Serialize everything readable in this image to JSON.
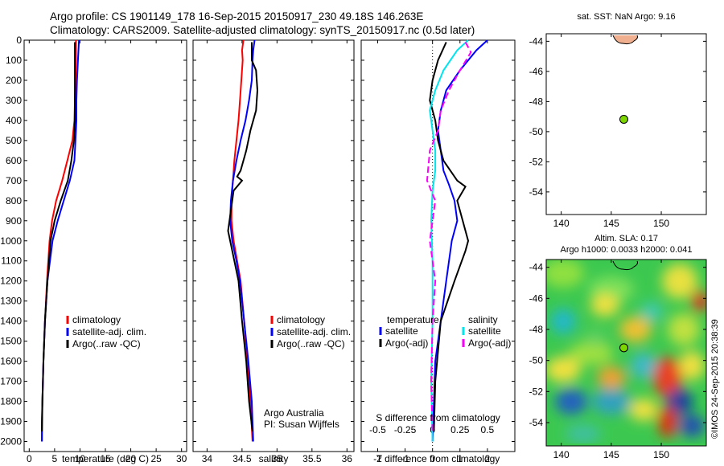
{
  "header": {
    "line1": "Argo profile: CS 1901149_178 16-Sep-2015 20150917_230 49.18S 146.263E",
    "line2": "Climatology: CARS2009. Satellite-adjusted climatology: synTS_20150917.nc (0.5d later)"
  },
  "colors": {
    "climatology": "#ff0000",
    "satellite": "#0000ff",
    "argo": "#000000",
    "sat_salt": "#00e5ee",
    "argo_salt": "#ff00ff",
    "float_marker": "#7cd400"
  },
  "chart_data": [
    {
      "id": "temperature",
      "type": "line",
      "xlabel": "temperature (deg C)",
      "ylabel": "",
      "xlim": [
        -1,
        31
      ],
      "ylim": [
        2050,
        0
      ],
      "xticks": [
        0,
        5,
        10,
        15,
        20,
        25,
        30
      ],
      "yticks": [
        0,
        100,
        200,
        300,
        400,
        500,
        600,
        700,
        800,
        900,
        1000,
        1100,
        1200,
        1300,
        1400,
        1500,
        1600,
        1700,
        1800,
        1900,
        2000
      ],
      "legend": [
        "climatology",
        "satellite-adj. clim.",
        "Argo(..raw -QC)"
      ],
      "series": [
        {
          "name": "climatology",
          "color": "#ff0000",
          "x": [
            9.2,
            9.2,
            9.1,
            9.0,
            8.9,
            8.5,
            7.5,
            6.5,
            5.3,
            4.5,
            4.0,
            3.5,
            3.1,
            2.8,
            2.6,
            2.55,
            2.5
          ],
          "y": [
            0,
            100,
            200,
            300,
            400,
            500,
            600,
            700,
            800,
            900,
            1000,
            1200,
            1400,
            1600,
            1800,
            1900,
            2000
          ]
        },
        {
          "name": "satellite-adj. clim.",
          "color": "#0000ff",
          "x": [
            9.8,
            9.6,
            9.4,
            9.3,
            9.3,
            9.1,
            8.9,
            8.0,
            6.8,
            5.6,
            4.6,
            3.6,
            3.1,
            2.8,
            2.6,
            2.5,
            2.5
          ],
          "y": [
            0,
            100,
            200,
            300,
            400,
            500,
            600,
            700,
            800,
            900,
            1000,
            1200,
            1400,
            1600,
            1800,
            1900,
            2000
          ]
        },
        {
          "name": "Argo(..raw -QC)",
          "color": "#000000",
          "x": [
            9.0,
            9.0,
            9.0,
            9.0,
            9.0,
            8.8,
            8.3,
            7.6,
            6.2,
            5.0,
            4.2,
            3.6,
            3.1,
            2.8,
            2.6,
            2.5
          ],
          "y": [
            10,
            100,
            200,
            300,
            400,
            500,
            600,
            700,
            800,
            900,
            1000,
            1200,
            1400,
            1600,
            1800,
            1950
          ]
        }
      ]
    },
    {
      "id": "salinity",
      "type": "line",
      "xlabel": "salinity",
      "ylabel": "",
      "xlim": [
        33.8,
        36.1
      ],
      "ylim": [
        2050,
        0
      ],
      "xticks": [
        34,
        34.5,
        35,
        35.5,
        36
      ],
      "legend": [
        "climatology",
        "satellite-adj. clim.",
        "Argo(..raw -QC)"
      ],
      "annotation": [
        "Argo Australia",
        "PI: Susan Wijffels"
      ],
      "series": [
        {
          "name": "climatology",
          "color": "#ff0000",
          "x": [
            34.52,
            34.5,
            34.51,
            34.49,
            34.47,
            34.45,
            34.42,
            34.39,
            34.37,
            34.35,
            34.35,
            34.38,
            34.43,
            34.48,
            34.53,
            34.58,
            34.62,
            34.65
          ],
          "y": [
            0,
            50,
            100,
            200,
            300,
            400,
            500,
            600,
            700,
            800,
            900,
            1000,
            1100,
            1200,
            1400,
            1600,
            1800,
            2000
          ]
        },
        {
          "name": "satellite-adj. clim.",
          "color": "#0000ff",
          "x": [
            34.68,
            34.66,
            34.65,
            34.64,
            34.6,
            34.55,
            34.48,
            34.42,
            34.37,
            34.34,
            34.33,
            34.36,
            34.42,
            34.47,
            34.53,
            34.59,
            34.64,
            34.66
          ],
          "y": [
            0,
            50,
            100,
            200,
            300,
            400,
            500,
            600,
            700,
            800,
            900,
            1000,
            1100,
            1200,
            1400,
            1600,
            1800,
            2000
          ]
        },
        {
          "name": "Argo(..raw -QC)",
          "color": "#000000",
          "x": [
            34.64,
            34.64,
            34.7,
            34.72,
            34.7,
            34.62,
            34.56,
            34.52,
            34.48,
            34.43,
            34.5,
            34.38,
            34.34,
            34.3,
            34.36,
            34.45,
            34.5,
            34.56,
            34.6,
            34.65
          ],
          "y": [
            10,
            100,
            150,
            250,
            350,
            450,
            550,
            600,
            650,
            680,
            700,
            750,
            850,
            950,
            1050,
            1200,
            1400,
            1600,
            1800,
            1950
          ]
        }
      ]
    },
    {
      "id": "difference",
      "type": "line",
      "xlabel": "T difference from climatology",
      "xlabel_top": "S difference from climatology",
      "xlim": [
        -2.6,
        3.0
      ],
      "ylim": [
        2050,
        0
      ],
      "xticks": [
        -2,
        -1,
        0,
        1,
        2
      ],
      "xticks_s_labels": [
        "-0.5",
        "-0.25",
        "0",
        "0.25",
        "0.5"
      ],
      "legend_temperature": {
        "title": "temperature",
        "items": [
          "satellite",
          "Argo(-adj)"
        ]
      },
      "legend_salinity": {
        "title": "salinity",
        "items": [
          "satellite",
          "Argo(-adj)"
        ]
      },
      "series": [
        {
          "name": "temperature satellite",
          "color": "#0000ff",
          "x": [
            2.0,
            1.6,
            1.0,
            0.5,
            0.3,
            0.2,
            0.3,
            0.4,
            0.6,
            0.8,
            0.9,
            0.7,
            0.5,
            0.3,
            0.1,
            0.05,
            0.0
          ],
          "y": [
            0,
            50,
            150,
            250,
            350,
            450,
            550,
            650,
            720,
            800,
            900,
            1000,
            1200,
            1400,
            1600,
            1800,
            2000
          ]
        },
        {
          "name": "temperature Argo(-adj)",
          "color": "#000000",
          "x": [
            0.5,
            0.2,
            0.0,
            -0.1,
            0.1,
            0.2,
            0.4,
            0.9,
            1.2,
            0.9,
            1.1,
            1.3,
            1.2,
            0.8,
            0.3,
            0.1,
            0.05
          ],
          "y": [
            10,
            100,
            200,
            300,
            400,
            500,
            600,
            700,
            730,
            800,
            900,
            1000,
            1050,
            1200,
            1400,
            1700,
            1950
          ]
        },
        {
          "name": "salinity satellite",
          "color": "#00e5ee",
          "x": [
            1.3,
            0.9,
            0.4,
            0.1,
            -0.1,
            0.0,
            0.1,
            0.1,
            0.0,
            -0.05,
            0.0,
            0.0,
            -0.05,
            0.0
          ],
          "y": [
            0,
            50,
            150,
            250,
            350,
            450,
            550,
            650,
            750,
            900,
            1100,
            1400,
            1700,
            2000
          ]
        },
        {
          "name": "salinity Argo(-adj)",
          "color": "#ff00ff",
          "x": [
            1.2,
            1.4,
            1.0,
            0.6,
            0.3,
            0.2,
            -0.1,
            -0.2,
            0.1,
            0.0,
            -0.1,
            0.1,
            0.0,
            -0.05,
            0.0
          ],
          "y": [
            10,
            60,
            150,
            250,
            350,
            450,
            550,
            700,
            800,
            900,
            1000,
            1200,
            1400,
            1700,
            1950
          ]
        }
      ]
    },
    {
      "id": "sst_map",
      "type": "scatter",
      "title": "sat. SST: NaN Argo: 9.16",
      "xlim": [
        138.5,
        154.5
      ],
      "ylim": [
        -55.5,
        -43.5
      ],
      "xticks": [
        140,
        145,
        150
      ],
      "yticks": [
        -44,
        -46,
        -48,
        -50,
        -52,
        -54
      ],
      "points": [
        {
          "x": 146.26,
          "y": -49.18
        }
      ]
    },
    {
      "id": "sla_map",
      "type": "heatmap",
      "title": "Altim. SLA: 0.17",
      "subtitle": "Argo h1000: 0.0033 h2000: 0.041",
      "xlim": [
        138.5,
        154.5
      ],
      "ylim": [
        -55.5,
        -43.5
      ],
      "xticks": [
        140,
        145,
        150
      ],
      "yticks": [
        -44,
        -46,
        -48,
        -50,
        -52,
        -54
      ],
      "points": [
        {
          "x": 146.26,
          "y": -49.18
        }
      ]
    }
  ],
  "watermark": "©IMOS 24-Sep-2015 20:38:39"
}
